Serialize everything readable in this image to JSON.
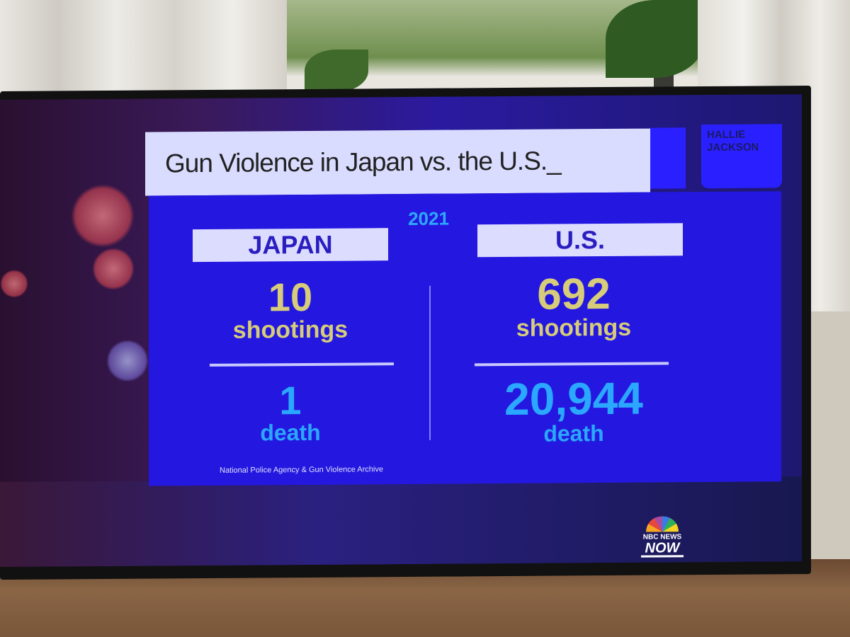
{
  "graphic": {
    "title": "Gun Violence in Japan vs. the U.S._",
    "show_logo_text": "HALLIE JACKSON",
    "year": "2021",
    "japan": {
      "label": "JAPAN",
      "shootings_value": "10",
      "shootings_label": "shootings",
      "deaths_value": "1",
      "deaths_label": "death"
    },
    "us": {
      "label": "U.S.",
      "shootings_value": "692",
      "shootings_label": "shootings",
      "deaths_value": "20,944",
      "deaths_label": "death"
    },
    "source": "National Police Agency & Gun Violence Archive",
    "network_logo": {
      "line1": "NBC NEWS",
      "line2": "NOW"
    }
  },
  "colors": {
    "panel_blue": "#2418e0",
    "gold": "#d6cc7a",
    "cyan": "#2aa8ff",
    "title_bg": "#d9dcff"
  }
}
